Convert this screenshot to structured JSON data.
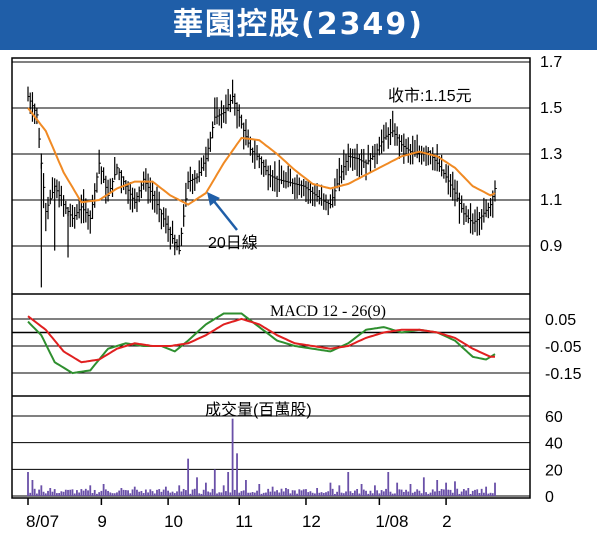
{
  "header": {
    "title": "華園控股(2349)"
  },
  "colors": {
    "header_bg": "#1f5ea8",
    "price_bar": "#000000",
    "ma20": "#f08a24",
    "macd": "#2f8f2f",
    "signal": "#e02020",
    "volume": "#6a50a8",
    "annotation_arrow": "#1f5ea8"
  },
  "chart_data": [
    {
      "type": "ohlc",
      "name": "price",
      "title": "",
      "annotation_close": "收市:1.15元",
      "annotation_ma": "20日線",
      "yticks": [
        "1.7",
        "1.5",
        "1.3",
        "1.1",
        "0.9"
      ],
      "ylim": [
        0.7,
        1.7
      ],
      "xlabels": [
        "8/07",
        "9",
        "10",
        "11",
        "12",
        "1/08",
        "2"
      ],
      "close_knots": [
        [
          0,
          1.55
        ],
        [
          4,
          1.47
        ],
        [
          8,
          1.05
        ],
        [
          12,
          1.16
        ],
        [
          16,
          1.08
        ],
        [
          20,
          1.02
        ],
        [
          24,
          1.07
        ],
        [
          28,
          1.02
        ],
        [
          32,
          1.26
        ],
        [
          36,
          1.12
        ],
        [
          40,
          1.24
        ],
        [
          44,
          1.16
        ],
        [
          48,
          1.09
        ],
        [
          52,
          1.19
        ],
        [
          56,
          1.12
        ],
        [
          60,
          1.04
        ],
        [
          64,
          0.95
        ],
        [
          68,
          0.88
        ],
        [
          72,
          1.18
        ],
        [
          76,
          1.2
        ],
        [
          80,
          1.28
        ],
        [
          84,
          1.46
        ],
        [
          88,
          1.48
        ],
        [
          92,
          1.55
        ],
        [
          96,
          1.43
        ],
        [
          100,
          1.32
        ],
        [
          104,
          1.28
        ],
        [
          108,
          1.21
        ],
        [
          112,
          1.19
        ],
        [
          116,
          1.18
        ],
        [
          120,
          1.17
        ],
        [
          124,
          1.16
        ],
        [
          128,
          1.13
        ],
        [
          132,
          1.1
        ],
        [
          136,
          1.08
        ],
        [
          140,
          1.2
        ],
        [
          144,
          1.29
        ],
        [
          148,
          1.28
        ],
        [
          152,
          1.26
        ],
        [
          156,
          1.3
        ],
        [
          160,
          1.37
        ],
        [
          164,
          1.4
        ],
        [
          168,
          1.34
        ],
        [
          172,
          1.31
        ],
        [
          176,
          1.3
        ],
        [
          180,
          1.31
        ],
        [
          184,
          1.26
        ],
        [
          188,
          1.2
        ],
        [
          192,
          1.13
        ],
        [
          196,
          1.04
        ],
        [
          200,
          1.0
        ],
        [
          204,
          1.03
        ],
        [
          208,
          1.08
        ],
        [
          210,
          1.15
        ]
      ],
      "ma20_knots": [
        [
          0,
          1.5
        ],
        [
          8,
          1.4
        ],
        [
          16,
          1.22
        ],
        [
          24,
          1.09
        ],
        [
          32,
          1.1
        ],
        [
          40,
          1.15
        ],
        [
          48,
          1.18
        ],
        [
          56,
          1.18
        ],
        [
          64,
          1.12
        ],
        [
          72,
          1.08
        ],
        [
          80,
          1.13
        ],
        [
          88,
          1.26
        ],
        [
          96,
          1.37
        ],
        [
          104,
          1.36
        ],
        [
          112,
          1.3
        ],
        [
          120,
          1.23
        ],
        [
          128,
          1.17
        ],
        [
          136,
          1.15
        ],
        [
          144,
          1.17
        ],
        [
          152,
          1.21
        ],
        [
          160,
          1.25
        ],
        [
          168,
          1.29
        ],
        [
          176,
          1.31
        ],
        [
          184,
          1.29
        ],
        [
          192,
          1.24
        ],
        [
          200,
          1.16
        ],
        [
          208,
          1.12
        ],
        [
          210,
          1.13
        ]
      ]
    },
    {
      "type": "line",
      "name": "macd",
      "title": "MACD 12 - 26(9)",
      "yticks": [
        "0.05",
        "-0.05",
        "-0.15"
      ],
      "ylim": [
        -0.22,
        0.12
      ],
      "series": [
        {
          "values_knots": [
            [
              0,
              0.04
            ],
            [
              6,
              -0.01
            ],
            [
              12,
              -0.11
            ],
            [
              20,
              -0.15
            ],
            [
              28,
              -0.14
            ],
            [
              36,
              -0.06
            ],
            [
              44,
              -0.04
            ],
            [
              52,
              -0.05
            ],
            [
              60,
              -0.05
            ],
            [
              66,
              -0.07
            ],
            [
              72,
              -0.03
            ],
            [
              80,
              0.03
            ],
            [
              88,
              0.07
            ],
            [
              96,
              0.07
            ],
            [
              104,
              0.02
            ],
            [
              112,
              -0.03
            ],
            [
              120,
              -0.05
            ],
            [
              128,
              -0.06
            ],
            [
              136,
              -0.07
            ],
            [
              144,
              -0.04
            ],
            [
              152,
              0.01
            ],
            [
              160,
              0.02
            ],
            [
              168,
              0.0
            ],
            [
              176,
              0.01
            ],
            [
              184,
              0.0
            ],
            [
              192,
              -0.03
            ],
            [
              200,
              -0.09
            ],
            [
              206,
              -0.1
            ],
            [
              210,
              -0.08
            ]
          ]
        },
        {
          "values_knots": [
            [
              0,
              0.06
            ],
            [
              8,
              0.01
            ],
            [
              16,
              -0.07
            ],
            [
              24,
              -0.11
            ],
            [
              32,
              -0.1
            ],
            [
              40,
              -0.06
            ],
            [
              48,
              -0.04
            ],
            [
              56,
              -0.05
            ],
            [
              64,
              -0.05
            ],
            [
              72,
              -0.04
            ],
            [
              80,
              -0.01
            ],
            [
              88,
              0.03
            ],
            [
              96,
              0.05
            ],
            [
              104,
              0.03
            ],
            [
              112,
              -0.01
            ],
            [
              120,
              -0.04
            ],
            [
              128,
              -0.05
            ],
            [
              136,
              -0.06
            ],
            [
              144,
              -0.05
            ],
            [
              152,
              -0.02
            ],
            [
              160,
              0.0
            ],
            [
              168,
              0.01
            ],
            [
              176,
              0.01
            ],
            [
              184,
              0.0
            ],
            [
              192,
              -0.02
            ],
            [
              200,
              -0.06
            ],
            [
              208,
              -0.09
            ],
            [
              210,
              -0.09
            ]
          ]
        }
      ]
    },
    {
      "type": "bar",
      "name": "volume",
      "title": "成交量(百萬股)",
      "yticks": [
        "60",
        "40",
        "20",
        "0"
      ],
      "ylim": [
        0,
        60
      ],
      "spikes": [
        [
          0,
          18
        ],
        [
          2,
          12
        ],
        [
          6,
          8
        ],
        [
          10,
          6
        ],
        [
          20,
          5
        ],
        [
          28,
          8
        ],
        [
          34,
          9
        ],
        [
          42,
          6
        ],
        [
          48,
          7
        ],
        [
          55,
          5
        ],
        [
          62,
          7
        ],
        [
          68,
          8
        ],
        [
          72,
          28
        ],
        [
          76,
          14
        ],
        [
          80,
          10
        ],
        [
          84,
          20
        ],
        [
          88,
          8
        ],
        [
          90,
          18
        ],
        [
          92,
          58
        ],
        [
          94,
          32
        ],
        [
          98,
          12
        ],
        [
          104,
          9
        ],
        [
          110,
          7
        ],
        [
          116,
          6
        ],
        [
          124,
          5
        ],
        [
          130,
          6
        ],
        [
          136,
          10
        ],
        [
          140,
          8
        ],
        [
          144,
          18
        ],
        [
          150,
          9
        ],
        [
          156,
          8
        ],
        [
          162,
          18
        ],
        [
          166,
          10
        ],
        [
          172,
          9
        ],
        [
          178,
          14
        ],
        [
          184,
          12
        ],
        [
          188,
          10
        ],
        [
          192,
          11
        ],
        [
          198,
          6
        ],
        [
          202,
          5
        ],
        [
          206,
          7
        ],
        [
          210,
          10
        ]
      ]
    }
  ]
}
